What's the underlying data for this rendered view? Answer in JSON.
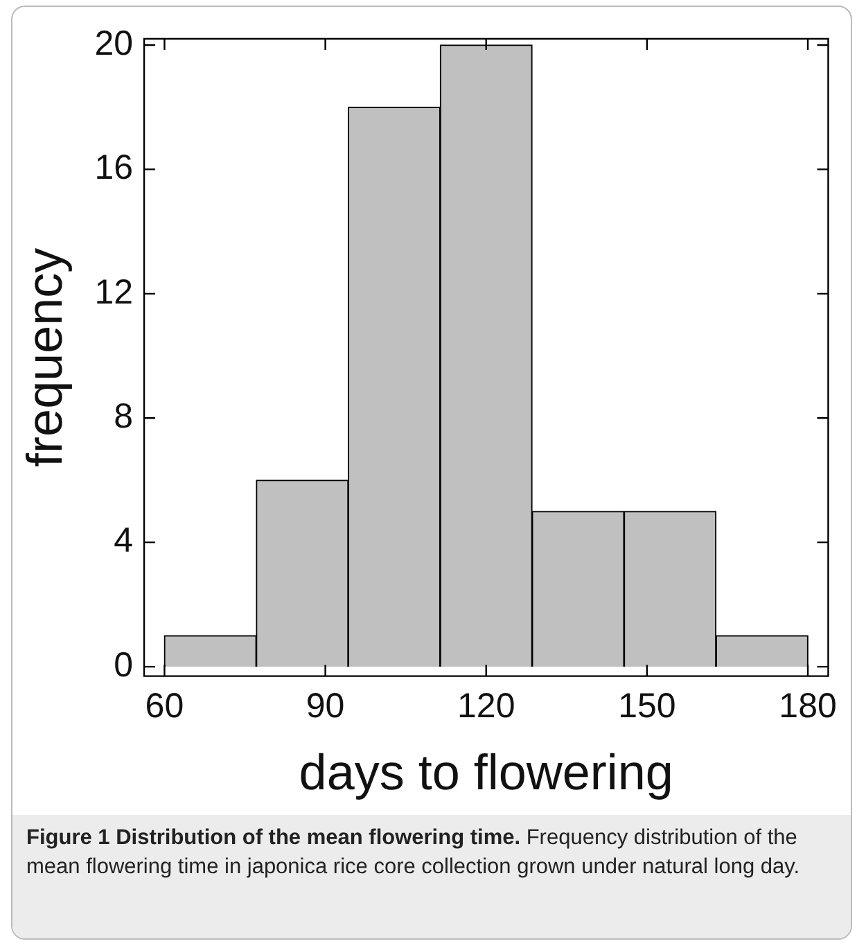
{
  "chart_data": {
    "type": "histogram",
    "title": "Figure 1 Distribution of the mean flowering time.",
    "xlabel": "days to flowering",
    "ylabel": "frequency",
    "bins": [
      60,
      77.1,
      94.3,
      111.4,
      128.6,
      145.7,
      162.9,
      180
    ],
    "values": [
      1,
      6,
      18,
      20,
      5,
      5,
      1
    ],
    "color": "#c0c0c0",
    "xlim": [
      56.2,
      183.8
    ],
    "xticks": [
      60,
      90,
      120,
      150,
      180
    ],
    "ylim": [
      -0.3,
      20.2
    ],
    "yticks": [
      0,
      4,
      8,
      12,
      16,
      20
    ],
    "grid": false,
    "legend": false,
    "annotations": [
      "Frequency distribution of the mean flowering time in japonica rice core collection grown under natural long day."
    ]
  }
}
